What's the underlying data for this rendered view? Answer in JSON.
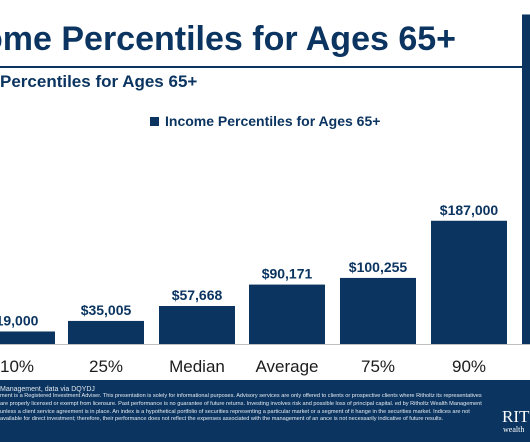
{
  "header": {
    "title": "ome Percentiles for Ages 65+",
    "subtitle": "Percentiles for Ages 65+"
  },
  "colors": {
    "bar": "#0b3560",
    "footer": "#0b3560"
  },
  "chart_data": {
    "type": "bar",
    "legend": "Income Percentiles for Ages 65+",
    "legend_position": "top",
    "categories": [
      "10%",
      "25%",
      "Median",
      "Average",
      "75%",
      "90%",
      ""
    ],
    "values": [
      19000,
      35005,
      57668,
      90171,
      100255,
      187000,
      500000
    ],
    "data_labels": [
      "19,000",
      "$35,005",
      "$57,668",
      "$90,171",
      "$100,255",
      "$187,000",
      ""
    ],
    "ylim": [
      0,
      525000
    ],
    "grid": false
  },
  "footer": {
    "source": "Management, data via DQYDJ",
    "disclaimer": "ment is a Registered Investment Adviser. This presentation is solely for informational purposes. Advisory services are only offered to clients or prospective clients where Ritholtz its representatives are properly licensed or exempt from licensure. Past performance is no guarantee of future returns. Investing involves risk and possible loss of principal capital. ed by Ritholtz Wealth Management unless a client service agreement is in place. An index is a hypothetical portfolio of securities representing a particular market or a segment of it hange in the securities market. Indices are not available for direct investment; therefore, their performance does not reflect the expenses associated with the management of an ance is not necessarily indicative of future results.",
    "brand": "RIT",
    "brand_sub": "wealth"
  }
}
